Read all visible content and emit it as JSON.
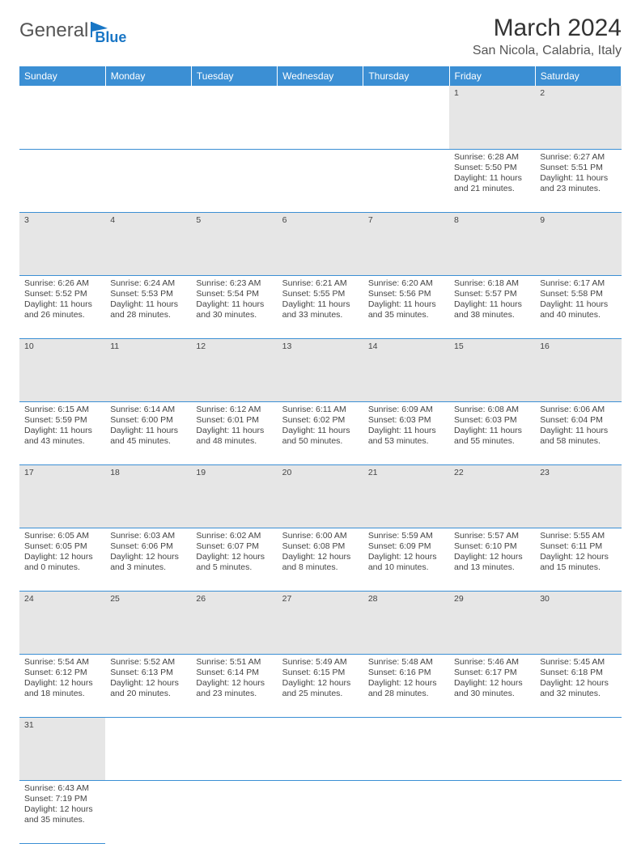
{
  "brand": {
    "part1": "General",
    "part2": "Blue"
  },
  "title": "March 2024",
  "location": "San Nicola, Calabria, Italy",
  "colors": {
    "header_bg": "#3b8fd4",
    "daynum_bg": "#e6e6e6",
    "rule": "#3b8fd4"
  },
  "weekdays": [
    "Sunday",
    "Monday",
    "Tuesday",
    "Wednesday",
    "Thursday",
    "Friday",
    "Saturday"
  ],
  "weeks": [
    [
      null,
      null,
      null,
      null,
      null,
      {
        "n": "1",
        "sr": "Sunrise: 6:28 AM",
        "ss": "Sunset: 5:50 PM",
        "d1": "Daylight: 11 hours",
        "d2": "and 21 minutes."
      },
      {
        "n": "2",
        "sr": "Sunrise: 6:27 AM",
        "ss": "Sunset: 5:51 PM",
        "d1": "Daylight: 11 hours",
        "d2": "and 23 minutes."
      }
    ],
    [
      {
        "n": "3",
        "sr": "Sunrise: 6:26 AM",
        "ss": "Sunset: 5:52 PM",
        "d1": "Daylight: 11 hours",
        "d2": "and 26 minutes."
      },
      {
        "n": "4",
        "sr": "Sunrise: 6:24 AM",
        "ss": "Sunset: 5:53 PM",
        "d1": "Daylight: 11 hours",
        "d2": "and 28 minutes."
      },
      {
        "n": "5",
        "sr": "Sunrise: 6:23 AM",
        "ss": "Sunset: 5:54 PM",
        "d1": "Daylight: 11 hours",
        "d2": "and 30 minutes."
      },
      {
        "n": "6",
        "sr": "Sunrise: 6:21 AM",
        "ss": "Sunset: 5:55 PM",
        "d1": "Daylight: 11 hours",
        "d2": "and 33 minutes."
      },
      {
        "n": "7",
        "sr": "Sunrise: 6:20 AM",
        "ss": "Sunset: 5:56 PM",
        "d1": "Daylight: 11 hours",
        "d2": "and 35 minutes."
      },
      {
        "n": "8",
        "sr": "Sunrise: 6:18 AM",
        "ss": "Sunset: 5:57 PM",
        "d1": "Daylight: 11 hours",
        "d2": "and 38 minutes."
      },
      {
        "n": "9",
        "sr": "Sunrise: 6:17 AM",
        "ss": "Sunset: 5:58 PM",
        "d1": "Daylight: 11 hours",
        "d2": "and 40 minutes."
      }
    ],
    [
      {
        "n": "10",
        "sr": "Sunrise: 6:15 AM",
        "ss": "Sunset: 5:59 PM",
        "d1": "Daylight: 11 hours",
        "d2": "and 43 minutes."
      },
      {
        "n": "11",
        "sr": "Sunrise: 6:14 AM",
        "ss": "Sunset: 6:00 PM",
        "d1": "Daylight: 11 hours",
        "d2": "and 45 minutes."
      },
      {
        "n": "12",
        "sr": "Sunrise: 6:12 AM",
        "ss": "Sunset: 6:01 PM",
        "d1": "Daylight: 11 hours",
        "d2": "and 48 minutes."
      },
      {
        "n": "13",
        "sr": "Sunrise: 6:11 AM",
        "ss": "Sunset: 6:02 PM",
        "d1": "Daylight: 11 hours",
        "d2": "and 50 minutes."
      },
      {
        "n": "14",
        "sr": "Sunrise: 6:09 AM",
        "ss": "Sunset: 6:03 PM",
        "d1": "Daylight: 11 hours",
        "d2": "and 53 minutes."
      },
      {
        "n": "15",
        "sr": "Sunrise: 6:08 AM",
        "ss": "Sunset: 6:03 PM",
        "d1": "Daylight: 11 hours",
        "d2": "and 55 minutes."
      },
      {
        "n": "16",
        "sr": "Sunrise: 6:06 AM",
        "ss": "Sunset: 6:04 PM",
        "d1": "Daylight: 11 hours",
        "d2": "and 58 minutes."
      }
    ],
    [
      {
        "n": "17",
        "sr": "Sunrise: 6:05 AM",
        "ss": "Sunset: 6:05 PM",
        "d1": "Daylight: 12 hours",
        "d2": "and 0 minutes."
      },
      {
        "n": "18",
        "sr": "Sunrise: 6:03 AM",
        "ss": "Sunset: 6:06 PM",
        "d1": "Daylight: 12 hours",
        "d2": "and 3 minutes."
      },
      {
        "n": "19",
        "sr": "Sunrise: 6:02 AM",
        "ss": "Sunset: 6:07 PM",
        "d1": "Daylight: 12 hours",
        "d2": "and 5 minutes."
      },
      {
        "n": "20",
        "sr": "Sunrise: 6:00 AM",
        "ss": "Sunset: 6:08 PM",
        "d1": "Daylight: 12 hours",
        "d2": "and 8 minutes."
      },
      {
        "n": "21",
        "sr": "Sunrise: 5:59 AM",
        "ss": "Sunset: 6:09 PM",
        "d1": "Daylight: 12 hours",
        "d2": "and 10 minutes."
      },
      {
        "n": "22",
        "sr": "Sunrise: 5:57 AM",
        "ss": "Sunset: 6:10 PM",
        "d1": "Daylight: 12 hours",
        "d2": "and 13 minutes."
      },
      {
        "n": "23",
        "sr": "Sunrise: 5:55 AM",
        "ss": "Sunset: 6:11 PM",
        "d1": "Daylight: 12 hours",
        "d2": "and 15 minutes."
      }
    ],
    [
      {
        "n": "24",
        "sr": "Sunrise: 5:54 AM",
        "ss": "Sunset: 6:12 PM",
        "d1": "Daylight: 12 hours",
        "d2": "and 18 minutes."
      },
      {
        "n": "25",
        "sr": "Sunrise: 5:52 AM",
        "ss": "Sunset: 6:13 PM",
        "d1": "Daylight: 12 hours",
        "d2": "and 20 minutes."
      },
      {
        "n": "26",
        "sr": "Sunrise: 5:51 AM",
        "ss": "Sunset: 6:14 PM",
        "d1": "Daylight: 12 hours",
        "d2": "and 23 minutes."
      },
      {
        "n": "27",
        "sr": "Sunrise: 5:49 AM",
        "ss": "Sunset: 6:15 PM",
        "d1": "Daylight: 12 hours",
        "d2": "and 25 minutes."
      },
      {
        "n": "28",
        "sr": "Sunrise: 5:48 AM",
        "ss": "Sunset: 6:16 PM",
        "d1": "Daylight: 12 hours",
        "d2": "and 28 minutes."
      },
      {
        "n": "29",
        "sr": "Sunrise: 5:46 AM",
        "ss": "Sunset: 6:17 PM",
        "d1": "Daylight: 12 hours",
        "d2": "and 30 minutes."
      },
      {
        "n": "30",
        "sr": "Sunrise: 5:45 AM",
        "ss": "Sunset: 6:18 PM",
        "d1": "Daylight: 12 hours",
        "d2": "and 32 minutes."
      }
    ],
    [
      {
        "n": "31",
        "sr": "Sunrise: 6:43 AM",
        "ss": "Sunset: 7:19 PM",
        "d1": "Daylight: 12 hours",
        "d2": "and 35 minutes."
      },
      null,
      null,
      null,
      null,
      null,
      null
    ]
  ]
}
